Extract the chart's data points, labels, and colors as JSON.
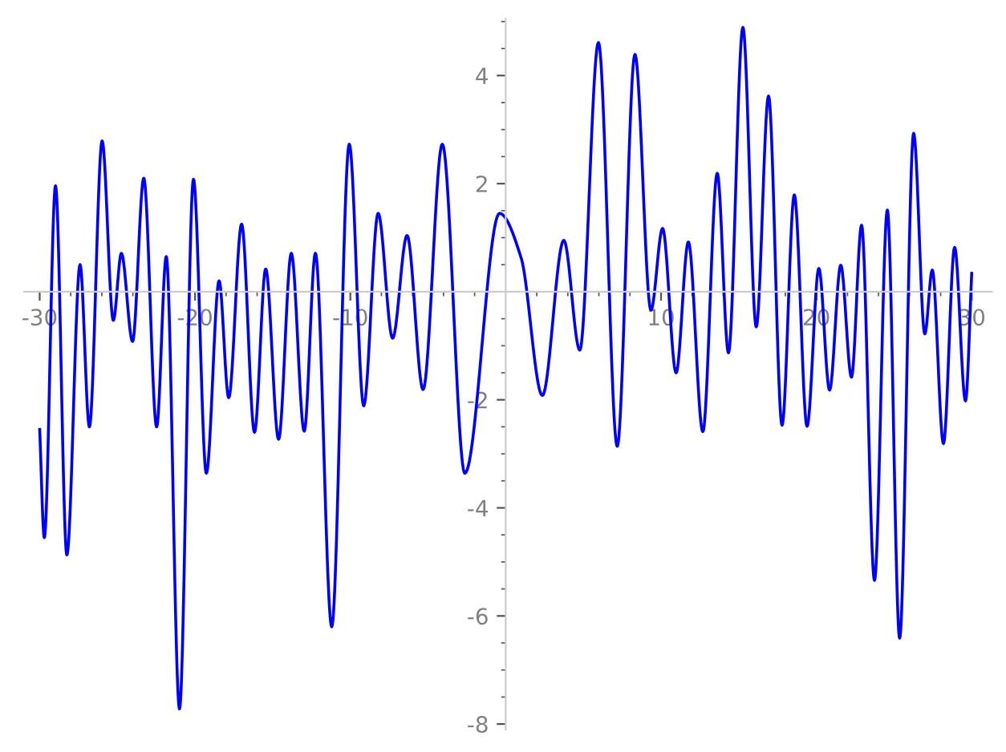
{
  "chart_data": {
    "type": "line",
    "grid": false,
    "marker": "none",
    "line_style": "solid",
    "xlim": [
      -31,
      31.3
    ],
    "ylim": [
      -8.1,
      5.05
    ],
    "xticks": [
      -30,
      {
        "value": -28,
        "label": null
      },
      {
        "value": -26,
        "label": null
      },
      {
        "value": -24,
        "label": null
      },
      {
        "value": -22,
        "label": null
      },
      -20,
      {
        "value": -18,
        "label": null
      },
      {
        "value": -16,
        "label": null
      },
      {
        "value": -14,
        "label": null
      },
      {
        "value": -12,
        "label": null
      },
      -10,
      {
        "value": -8,
        "label": null
      },
      {
        "value": -6,
        "label": null
      },
      {
        "value": -4,
        "label": null
      },
      {
        "value": -2,
        "label": null
      },
      {
        "value": 2,
        "label": null
      },
      {
        "value": 4,
        "label": null
      },
      {
        "value": 6,
        "label": null
      },
      {
        "value": 8,
        "label": null
      },
      10,
      {
        "value": 12,
        "label": null
      },
      {
        "value": 14,
        "label": null
      },
      {
        "value": 16,
        "label": null
      },
      {
        "value": 18,
        "label": null
      },
      20,
      {
        "value": 22,
        "label": null
      },
      {
        "value": 24,
        "label": null
      },
      {
        "value": 26,
        "label": null
      },
      {
        "value": 28,
        "label": null
      },
      30
    ],
    "yticks": [
      -8,
      {
        "value": -7.5,
        "label": null
      },
      {
        "value": -7,
        "label": null
      },
      {
        "value": -6.5,
        "label": null
      },
      -6,
      {
        "value": -5.5,
        "label": null
      },
      {
        "value": -5,
        "label": null
      },
      {
        "value": -4.5,
        "label": null
      },
      -4,
      {
        "value": -3.5,
        "label": null
      },
      {
        "value": -3,
        "label": null
      },
      {
        "value": -2.5,
        "label": null
      },
      -2,
      {
        "value": -1.5,
        "label": null
      },
      {
        "value": -1,
        "label": null
      },
      {
        "value": -0.5,
        "label": null
      },
      {
        "value": 0.5,
        "label": null
      },
      {
        "value": 1,
        "label": null
      },
      {
        "value": 1.5,
        "label": null
      },
      2,
      {
        "value": 2.5,
        "label": null
      },
      {
        "value": 3,
        "label": null
      },
      {
        "value": 3.5,
        "label": null
      },
      4,
      {
        "value": 4.5,
        "label": null
      },
      {
        "value": 5,
        "label": null
      }
    ],
    "series": [
      {
        "color": "#0000ff",
        "x": [
          -30,
          -29.7,
          -28.98,
          -28.25,
          -27.4,
          -26.8,
          -25.98,
          -25.26,
          -24.74,
          -24.02,
          -23.3,
          -22.47,
          -21.85,
          -21.0,
          -20.1,
          -19.27,
          -18.45,
          -17.83,
          -17.0,
          -16.17,
          -15.45,
          -14.62,
          -13.8,
          -12.97,
          -12.25,
          -11.2,
          -10.07,
          -9.14,
          -8.21,
          -7.28,
          -6.35,
          -5.32,
          -4.08,
          -2.63,
          -0.4,
          1.0,
          2.36,
          3.74,
          4.77,
          5.97,
          7.18,
          8.32,
          9.35,
          10.1,
          10.97,
          11.76,
          12.69,
          13.62,
          14.34,
          15.27,
          16.13,
          16.92,
          17.79,
          18.58,
          19.4,
          20.16,
          20.85,
          21.57,
          22.26,
          22.91,
          23.74,
          24.57,
          25.36,
          26.26,
          26.98,
          27.46,
          28.18,
          28.9,
          29.6,
          30
        ],
        "values": [
          -2.55,
          -4.55,
          1.96,
          -4.87,
          0.5,
          -2.5,
          2.79,
          -0.53,
          0.71,
          -0.92,
          2.1,
          -2.5,
          0.65,
          -7.72,
          2.08,
          -3.36,
          0.2,
          -1.96,
          1.25,
          -2.6,
          0.42,
          -2.73,
          0.71,
          -2.58,
          0.71,
          -6.2,
          2.73,
          -2.11,
          1.45,
          -0.86,
          1.04,
          -1.81,
          2.73,
          -3.36,
          1.45,
          0.62,
          -1.92,
          0.95,
          -1.08,
          4.61,
          -2.86,
          4.39,
          -0.34,
          1.17,
          -1.5,
          0.92,
          -2.59,
          2.19,
          -1.13,
          4.89,
          -0.65,
          3.62,
          -2.47,
          1.79,
          -2.49,
          0.43,
          -1.82,
          0.49,
          -1.58,
          1.23,
          -5.34,
          1.51,
          -6.41,
          2.93,
          -0.78,
          0.4,
          -2.81,
          0.82,
          -2.02,
          0.34
        ]
      }
    ]
  }
}
